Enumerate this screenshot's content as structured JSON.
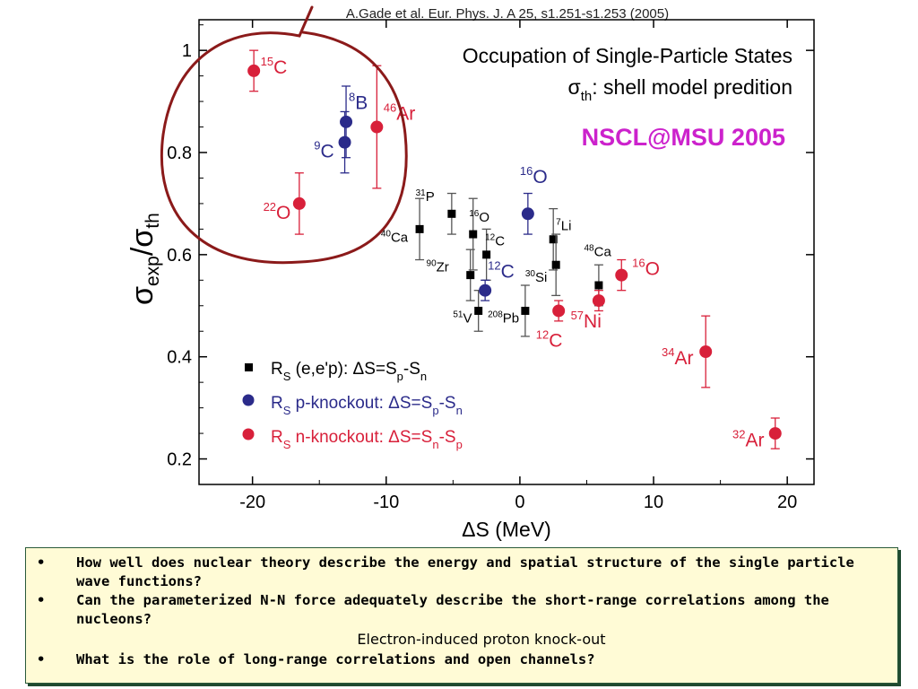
{
  "citation": "A.Gade et al. Eur. Phys. J. A 25, s1.251-s1.253 (2005)",
  "chart_data": {
    "type": "scatter",
    "title_lines": [
      "Occupation of Single-Particle States"
    ],
    "subtitle": {
      "sym": "σ",
      "sub": "th",
      "rest": ": shell model predition"
    },
    "lab": "NSCL@MSU 2005",
    "xlabel": "ΔS (MeV)",
    "ylabel": {
      "a": "σ",
      "a_sub": "exp",
      "slash": "/",
      "b": "σ",
      "b_sub": "th"
    },
    "xlim": [
      -24,
      22
    ],
    "ylim": [
      0.15,
      1.06
    ],
    "xticks": [
      -20,
      -10,
      0,
      10,
      20
    ],
    "yticks": [
      0.2,
      0.4,
      0.6,
      0.8,
      1
    ],
    "ytick_labels": [
      "0.2",
      "0.4",
      "0.6",
      "0.8",
      "1"
    ],
    "grid": false,
    "legend_position": "bottom-left",
    "legend": [
      {
        "marker": "square",
        "color": "#000000",
        "pre": "R",
        "pre_sub": "S",
        "text": " (e,e'p): ΔS=S",
        "s1": "p",
        "mid": "-S",
        "s2": "n"
      },
      {
        "marker": "circle",
        "color": "#2b2b8a",
        "pre": "R",
        "pre_sub": "S",
        "text": " p-knockout: ΔS=S",
        "s1": "p",
        "mid": "-S",
        "s2": "n"
      },
      {
        "marker": "circle",
        "color": "#d8203a",
        "pre": "R",
        "pre_sub": "S",
        "text": " n-knockout: ΔS=S",
        "s1": "n",
        "mid": "-S",
        "s2": "p"
      }
    ],
    "series": [
      {
        "name": "(e,e'p)",
        "marker": "square",
        "color": "#000000",
        "points": [
          {
            "x": -7.5,
            "y": 0.65,
            "err": 0.06,
            "mass": "40",
            "el": "Ca",
            "lx": -10.4,
            "ly": 0.625,
            "size": "small"
          },
          {
            "x": -5.1,
            "y": 0.68,
            "err": 0.04,
            "mass": "31",
            "el": "P",
            "lx": -7.8,
            "ly": 0.705,
            "size": "small"
          },
          {
            "x": -3.5,
            "y": 0.64,
            "err": 0.07,
            "mass": "16",
            "el": "O",
            "lx": -3.8,
            "ly": 0.665,
            "size": "small"
          },
          {
            "x": -2.5,
            "y": 0.6,
            "err": 0.05,
            "mass": "12",
            "el": "C",
            "lx": -2.6,
            "ly": 0.618,
            "size": "small"
          },
          {
            "x": -3.7,
            "y": 0.56,
            "err": 0.05,
            "mass": "90",
            "el": "Zr",
            "lx": -7.0,
            "ly": 0.567,
            "size": "small"
          },
          {
            "x": -3.1,
            "y": 0.49,
            "err": 0.04,
            "mass": "51",
            "el": "V",
            "lx": -5.0,
            "ly": 0.467,
            "size": "small"
          },
          {
            "x": 0.4,
            "y": 0.49,
            "err": 0.05,
            "mass": "208",
            "el": "Pb",
            "lx": -2.4,
            "ly": 0.467,
            "size": "small"
          },
          {
            "x": 2.5,
            "y": 0.63,
            "err": 0.06,
            "mass": "7",
            "el": "Li",
            "lx": 2.7,
            "ly": 0.648,
            "size": "small"
          },
          {
            "x": 2.7,
            "y": 0.58,
            "err": 0.06,
            "mass": "30",
            "el": "Si",
            "lx": 0.4,
            "ly": 0.547,
            "size": "small"
          },
          {
            "x": 5.9,
            "y": 0.54,
            "err": 0.04,
            "mass": "48",
            "el": "Ca",
            "lx": 4.8,
            "ly": 0.597,
            "size": "small"
          }
        ]
      },
      {
        "name": "p-knockout",
        "marker": "circle",
        "color": "#2b2b8a",
        "points": [
          {
            "x": -13.0,
            "y": 0.86,
            "err": 0.07,
            "mass": "8",
            "el": "B",
            "lx": -12.8,
            "ly": 0.885,
            "size": "large"
          },
          {
            "x": -13.1,
            "y": 0.82,
            "err": 0.06,
            "mass": "9",
            "el": "C",
            "lx": -15.4,
            "ly": 0.79,
            "size": "large"
          },
          {
            "x": 0.6,
            "y": 0.68,
            "err": 0.04,
            "mass": "16",
            "el": "O",
            "lx": 0.0,
            "ly": 0.74,
            "size": "large"
          },
          {
            "x": -2.6,
            "y": 0.53,
            "err": 0.02,
            "mass": "12",
            "el": "C",
            "lx": -2.4,
            "ly": 0.555,
            "size": "large"
          }
        ]
      },
      {
        "name": "n-knockout",
        "marker": "circle",
        "color": "#d8203a",
        "points": [
          {
            "x": -19.9,
            "y": 0.96,
            "err": 0.04,
            "mass": "15",
            "el": "C",
            "lx": -19.4,
            "ly": 0.955,
            "size": "large"
          },
          {
            "x": -10.7,
            "y": 0.85,
            "err": 0.12,
            "mass": "46",
            "el": "Ar",
            "lx": -10.2,
            "ly": 0.864,
            "size": "large"
          },
          {
            "x": -16.5,
            "y": 0.7,
            "err": 0.06,
            "mass": "22",
            "el": "O",
            "lx": -19.2,
            "ly": 0.67,
            "size": "large"
          },
          {
            "x": 2.9,
            "y": 0.49,
            "err": 0.02,
            "mass": "12",
            "el": "C",
            "lx": 1.2,
            "ly": 0.42,
            "size": "large"
          },
          {
            "x": 5.9,
            "y": 0.51,
            "err": 0.02,
            "mass": "57",
            "el": "Ni",
            "lx": 3.8,
            "ly": 0.457,
            "size": "large"
          },
          {
            "x": 7.6,
            "y": 0.56,
            "err": 0.03,
            "mass": "16",
            "el": "O",
            "lx": 8.4,
            "ly": 0.56,
            "size": "large"
          },
          {
            "x": 13.9,
            "y": 0.41,
            "err": 0.07,
            "mass": "34",
            "el": "Ar",
            "lx": 10.6,
            "ly": 0.385,
            "size": "large"
          },
          {
            "x": 19.1,
            "y": 0.25,
            "err": 0.03,
            "mass": "32",
            "el": "Ar",
            "lx": 15.9,
            "ly": 0.225,
            "size": "large"
          }
        ]
      }
    ]
  },
  "bullets": [
    {
      "dot": "•",
      "text": "How well does nuclear theory describe the energy and spatial structure of the single particle wave functions?"
    },
    {
      "dot": "•",
      "text": "Can the parameterized N-N force adequately describe the short-range correlations among the nucleons?"
    }
  ],
  "note": "Electron-induced proton knock-out",
  "bullet3": {
    "dot": "•",
    "text": "What is the role of long-range correlations and open channels?"
  },
  "colors": {
    "annotation_circle": "#8b1a1a",
    "lab": "#cc22cc",
    "box_bg": "#fffbd6",
    "box_border": "#2a5a3a"
  }
}
